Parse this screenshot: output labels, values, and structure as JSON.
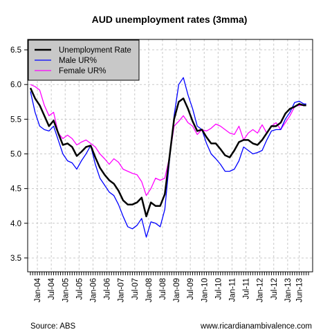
{
  "chart_data": {
    "type": "line",
    "title": "AUD unemployment rates (3mma)",
    "source": "Source: ABS",
    "website": "www.ricardianambivalence.com",
    "ylim": [
      3.3,
      6.65
    ],
    "yticks": [
      3.5,
      4.0,
      4.5,
      5.0,
      5.5,
      6.0,
      6.5
    ],
    "ytick_labels": [
      "3.5",
      "4.0",
      "4.5",
      "5.0",
      "5.5",
      "6.0",
      "6.5"
    ],
    "x_start": "2003-10",
    "x_end": "2013-10",
    "x_tick_labels": [
      "Jan-04",
      "Jul-04",
      "Jan-05",
      "Jul-05",
      "Jan-06",
      "Jul-06",
      "Jan-07",
      "Jul-07",
      "Jan-08",
      "Jul-08",
      "Jan-09",
      "Jul-09",
      "Jan-10",
      "Jul-10",
      "Jan-11",
      "Jul-11",
      "Jan-12",
      "Jul-12",
      "Jan-13",
      "Jun-13"
    ],
    "x_tick_dates": [
      "2004-01",
      "2004-07",
      "2005-01",
      "2005-07",
      "2006-01",
      "2006-07",
      "2007-01",
      "2007-07",
      "2008-01",
      "2008-07",
      "2009-01",
      "2009-07",
      "2010-01",
      "2010-07",
      "2011-01",
      "2011-07",
      "2012-01",
      "2012-07",
      "2013-01",
      "2013-06"
    ],
    "grid": true,
    "legend_position": "top-left",
    "series": [
      {
        "name": "Unemployment Rate",
        "color": "#000000",
        "x": [
          "2003-10",
          "2003-12",
          "2004-02",
          "2004-04",
          "2004-06",
          "2004-08",
          "2004-10",
          "2004-12",
          "2005-02",
          "2005-04",
          "2005-06",
          "2005-08",
          "2005-10",
          "2005-12",
          "2006-02",
          "2006-04",
          "2006-06",
          "2006-08",
          "2006-10",
          "2006-12",
          "2007-02",
          "2007-04",
          "2007-06",
          "2007-08",
          "2007-10",
          "2007-12",
          "2008-02",
          "2008-04",
          "2008-06",
          "2008-08",
          "2008-10",
          "2008-12",
          "2009-02",
          "2009-04",
          "2009-06",
          "2009-08",
          "2009-10",
          "2009-12",
          "2010-02",
          "2010-04",
          "2010-06",
          "2010-08",
          "2010-10",
          "2010-12",
          "2011-02",
          "2011-04",
          "2011-06",
          "2011-08",
          "2011-10",
          "2011-12",
          "2012-02",
          "2012-04",
          "2012-06",
          "2012-08",
          "2012-10",
          "2012-12",
          "2013-02",
          "2013-04",
          "2013-06",
          "2013-08",
          "2013-09"
        ],
        "values": [
          5.95,
          5.8,
          5.7,
          5.55,
          5.4,
          5.48,
          5.3,
          5.13,
          5.15,
          5.1,
          4.97,
          5.03,
          5.1,
          5.12,
          4.95,
          4.8,
          4.7,
          4.62,
          4.57,
          4.47,
          4.33,
          4.27,
          4.27,
          4.3,
          4.37,
          4.1,
          4.3,
          4.25,
          4.25,
          4.42,
          4.95,
          5.5,
          5.75,
          5.8,
          5.65,
          5.47,
          5.33,
          5.35,
          5.24,
          5.15,
          5.15,
          5.07,
          4.98,
          4.95,
          5.05,
          5.17,
          5.2,
          5.2,
          5.15,
          5.13,
          5.2,
          5.3,
          5.4,
          5.4,
          5.45,
          5.58,
          5.65,
          5.68,
          5.72,
          5.7,
          5.7
        ]
      },
      {
        "name": "Male UR%",
        "color": "#0000ff",
        "x": [
          "2003-10",
          "2003-12",
          "2004-02",
          "2004-04",
          "2004-06",
          "2004-08",
          "2004-10",
          "2004-12",
          "2005-02",
          "2005-04",
          "2005-06",
          "2005-08",
          "2005-10",
          "2005-12",
          "2006-02",
          "2006-04",
          "2006-06",
          "2006-08",
          "2006-10",
          "2006-12",
          "2007-02",
          "2007-04",
          "2007-06",
          "2007-08",
          "2007-10",
          "2007-12",
          "2008-02",
          "2008-04",
          "2008-06",
          "2008-08",
          "2008-10",
          "2008-12",
          "2009-02",
          "2009-04",
          "2009-06",
          "2009-08",
          "2009-10",
          "2009-12",
          "2010-02",
          "2010-04",
          "2010-06",
          "2010-08",
          "2010-10",
          "2010-12",
          "2011-02",
          "2011-04",
          "2011-06",
          "2011-08",
          "2011-10",
          "2011-12",
          "2012-02",
          "2012-04",
          "2012-06",
          "2012-08",
          "2012-10",
          "2012-12",
          "2013-02",
          "2013-04",
          "2013-06",
          "2013-08",
          "2013-09"
        ],
        "values": [
          5.9,
          5.6,
          5.4,
          5.35,
          5.33,
          5.4,
          5.2,
          5.0,
          4.9,
          4.87,
          4.78,
          4.9,
          5.0,
          5.12,
          4.85,
          4.65,
          4.55,
          4.45,
          4.4,
          4.27,
          4.1,
          3.95,
          3.92,
          3.97,
          4.07,
          3.8,
          4.02,
          4.0,
          3.95,
          4.2,
          4.9,
          5.55,
          6.0,
          6.1,
          5.85,
          5.65,
          5.4,
          5.35,
          5.15,
          5.0,
          4.93,
          4.85,
          4.75,
          4.75,
          4.78,
          4.9,
          5.1,
          5.05,
          5.0,
          5.02,
          5.05,
          5.2,
          5.33,
          5.35,
          5.35,
          5.5,
          5.6,
          5.74,
          5.76,
          5.72,
          5.72
        ]
      },
      {
        "name": "Female UR%",
        "color": "#ff00ff",
        "x": [
          "2003-10",
          "2003-12",
          "2004-02",
          "2004-04",
          "2004-06",
          "2004-08",
          "2004-10",
          "2004-12",
          "2005-02",
          "2005-04",
          "2005-06",
          "2005-08",
          "2005-10",
          "2005-12",
          "2006-02",
          "2006-04",
          "2006-06",
          "2006-08",
          "2006-10",
          "2006-12",
          "2007-02",
          "2007-04",
          "2007-06",
          "2007-08",
          "2007-10",
          "2007-12",
          "2008-02",
          "2008-04",
          "2008-06",
          "2008-08",
          "2008-10",
          "2008-12",
          "2009-02",
          "2009-04",
          "2009-06",
          "2009-08",
          "2009-10",
          "2009-12",
          "2010-02",
          "2010-04",
          "2010-06",
          "2010-08",
          "2010-10",
          "2010-12",
          "2011-02",
          "2011-04",
          "2011-06",
          "2011-08",
          "2011-10",
          "2011-12",
          "2012-02",
          "2012-04",
          "2012-06",
          "2012-08",
          "2012-10",
          "2012-12",
          "2013-02",
          "2013-04",
          "2013-06",
          "2013-08",
          "2013-09"
        ],
        "values": [
          6.0,
          5.97,
          5.92,
          5.7,
          5.55,
          5.6,
          5.3,
          5.22,
          5.27,
          5.22,
          5.13,
          5.17,
          5.2,
          5.15,
          5.1,
          5.0,
          4.93,
          4.85,
          4.93,
          4.88,
          4.78,
          4.75,
          4.72,
          4.7,
          4.6,
          4.4,
          4.5,
          4.65,
          4.62,
          4.65,
          4.95,
          5.4,
          5.47,
          5.55,
          5.45,
          5.4,
          5.28,
          5.35,
          5.33,
          5.37,
          5.43,
          5.4,
          5.35,
          5.3,
          5.28,
          5.4,
          5.2,
          5.3,
          5.35,
          5.3,
          5.42,
          5.3,
          5.4,
          5.45,
          5.35,
          5.45,
          5.55,
          5.68,
          5.7,
          5.7,
          5.7
        ]
      }
    ]
  }
}
